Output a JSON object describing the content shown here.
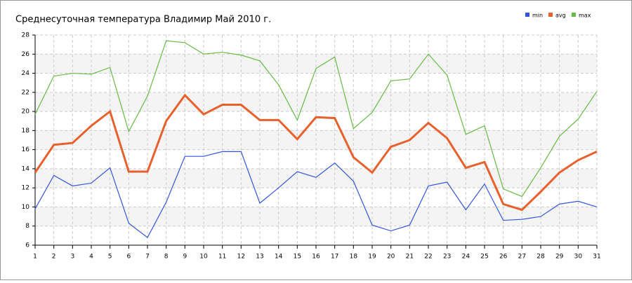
{
  "chart_data": {
    "type": "line",
    "title": "Среднесуточная температура Владимир  Май 2010 г.",
    "x": [
      1,
      2,
      3,
      4,
      5,
      6,
      7,
      8,
      9,
      10,
      11,
      12,
      13,
      14,
      15,
      16,
      17,
      18,
      19,
      20,
      21,
      22,
      23,
      24,
      25,
      26,
      27,
      28,
      29,
      30,
      31
    ],
    "xlim": [
      1,
      31
    ],
    "xticks": [
      1,
      2,
      3,
      4,
      5,
      6,
      7,
      8,
      9,
      10,
      11,
      12,
      13,
      14,
      15,
      16,
      17,
      18,
      19,
      20,
      21,
      22,
      23,
      24,
      25,
      26,
      27,
      28,
      29,
      30,
      31
    ],
    "ylim": [
      6,
      28
    ],
    "yticks": [
      6,
      8,
      10,
      12,
      14,
      16,
      18,
      20,
      22,
      24,
      26,
      28
    ],
    "grid": true,
    "legend": "top-right",
    "series": [
      {
        "name": "min",
        "color": "#3355dd",
        "values": [
          9.8,
          13.3,
          12.2,
          12.5,
          14.1,
          8.3,
          6.8,
          10.5,
          15.3,
          15.3,
          15.8,
          15.8,
          10.4,
          12.0,
          13.7,
          13.1,
          14.6,
          12.7,
          8.1,
          7.5,
          8.1,
          12.2,
          12.6,
          9.7,
          12.4,
          8.6,
          8.7,
          9.0,
          10.3,
          10.6,
          10.0
        ]
      },
      {
        "name": "avg",
        "color": "#e8602c",
        "values": [
          13.6,
          16.5,
          16.7,
          18.5,
          20.0,
          13.7,
          13.7,
          19.0,
          21.7,
          19.7,
          20.7,
          20.7,
          19.1,
          19.1,
          17.1,
          19.4,
          19.3,
          15.2,
          13.6,
          16.3,
          17.0,
          18.8,
          17.2,
          14.1,
          14.7,
          10.3,
          9.7,
          11.6,
          13.6,
          14.9,
          15.8
        ]
      },
      {
        "name": "max",
        "color": "#66bb44",
        "values": [
          19.7,
          23.7,
          24.0,
          23.9,
          24.6,
          17.9,
          21.6,
          27.4,
          27.2,
          26.0,
          26.2,
          25.9,
          25.3,
          22.8,
          19.1,
          24.5,
          25.7,
          18.2,
          19.9,
          23.2,
          23.4,
          26.0,
          23.8,
          17.6,
          18.5,
          11.9,
          11.1,
          14.1,
          17.4,
          19.2,
          22.1
        ]
      }
    ]
  }
}
